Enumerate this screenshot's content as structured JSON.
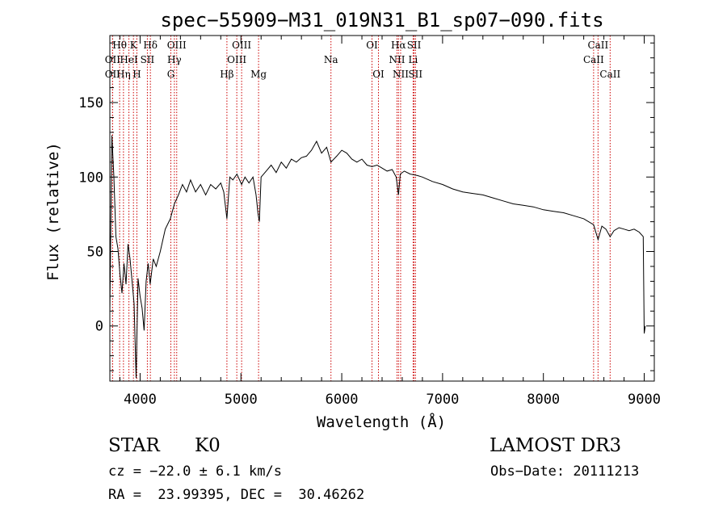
{
  "chart_data": {
    "type": "line",
    "title": "spec−55909−M31_019N31_B1_sp07−090.fits",
    "xlabel": "Wavelength (Å)",
    "ylabel": "Flux (relative)",
    "xlim": [
      3700,
      9100
    ],
    "ylim": [
      -37,
      195
    ],
    "xticks": [
      4000,
      5000,
      6000,
      7000,
      8000,
      9000
    ],
    "yticks": [
      0,
      50,
      100,
      150
    ],
    "line_color": "#000000",
    "marker_color": "#cc0000",
    "series": [
      {
        "name": "flux",
        "x": [
          3700,
          3720,
          3740,
          3760,
          3780,
          3800,
          3820,
          3840,
          3860,
          3880,
          3900,
          3920,
          3940,
          3960,
          3980,
          4000,
          4020,
          4040,
          4060,
          4080,
          4100,
          4130,
          4160,
          4200,
          4250,
          4300,
          4340,
          4380,
          4420,
          4460,
          4500,
          4550,
          4600,
          4650,
          4700,
          4750,
          4800,
          4830,
          4861,
          4890,
          4920,
          4960,
          5007,
          5040,
          5080,
          5120,
          5150,
          5170,
          5183,
          5200,
          5250,
          5300,
          5350,
          5400,
          5450,
          5500,
          5550,
          5600,
          5650,
          5700,
          5750,
          5800,
          5850,
          5893,
          5950,
          6000,
          6050,
          6100,
          6150,
          6200,
          6250,
          6300,
          6350,
          6400,
          6450,
          6500,
          6540,
          6563,
          6580,
          6620,
          6680,
          6750,
          6800,
          6900,
          7000,
          7100,
          7200,
          7300,
          7400,
          7500,
          7600,
          7700,
          7800,
          7900,
          8000,
          8100,
          8200,
          8300,
          8400,
          8498,
          8520,
          8542,
          8580,
          8620,
          8662,
          8700,
          8750,
          8800,
          8850,
          8900,
          8950,
          8990,
          9000,
          9010
        ],
        "y": [
          10,
          128,
          100,
          60,
          52,
          35,
          22,
          42,
          28,
          55,
          45,
          30,
          15,
          -35,
          32,
          20,
          12,
          -3,
          30,
          42,
          28,
          45,
          40,
          50,
          65,
          72,
          82,
          88,
          95,
          90,
          98,
          90,
          95,
          88,
          95,
          92,
          96,
          90,
          72,
          100,
          98,
          102,
          95,
          100,
          96,
          100,
          88,
          75,
          70,
          100,
          104,
          108,
          103,
          110,
          106,
          112,
          110,
          113,
          114,
          118,
          124,
          116,
          120,
          110,
          114,
          118,
          116,
          112,
          110,
          112,
          108,
          107,
          108,
          106,
          104,
          105,
          100,
          88,
          102,
          104,
          102,
          101,
          100,
          97,
          95,
          92,
          90,
          89,
          88,
          86,
          84,
          82,
          81,
          80,
          78,
          77,
          76,
          74,
          72,
          68,
          63,
          58,
          67,
          65,
          60,
          64,
          66,
          65,
          64,
          65,
          63,
          60,
          -5,
          0
        ]
      }
    ],
    "spectral_lines": [
      {
        "label": "Hθ",
        "x": 3797,
        "row": 0
      },
      {
        "label": "OII",
        "x": 3727,
        "row": 1
      },
      {
        "label": "OII",
        "x": 3727,
        "row": 2
      },
      {
        "label": "K",
        "x": 3934,
        "row": 0
      },
      {
        "label": "HeI",
        "x": 3889,
        "row": 1
      },
      {
        "label": "Hη",
        "x": 3835,
        "row": 2
      },
      {
        "label": "Hδ",
        "x": 4102,
        "row": 0
      },
      {
        "label": "SII",
        "x": 4072,
        "row": 1
      },
      {
        "label": "H",
        "x": 3968,
        "row": 2
      },
      {
        "label": "OIII",
        "x": 4363,
        "row": 0
      },
      {
        "label": "Hγ",
        "x": 4340,
        "row": 1
      },
      {
        "label": "G",
        "x": 4305,
        "row": 2
      },
      {
        "label": "OIII",
        "x": 5007,
        "row": 0
      },
      {
        "label": "OIII",
        "x": 4959,
        "row": 1
      },
      {
        "label": "Hβ",
        "x": 4861,
        "row": 2
      },
      {
        "label": "Mg",
        "x": 5175,
        "row": 2
      },
      {
        "label": "Na",
        "x": 5893,
        "row": 1
      },
      {
        "label": "OI",
        "x": 6300,
        "row": 0
      },
      {
        "label": "OI",
        "x": 6364,
        "row": 2
      },
      {
        "label": "Hα",
        "x": 6563,
        "row": 0
      },
      {
        "label": "NII",
        "x": 6548,
        "row": 1
      },
      {
        "label": "NII",
        "x": 6584,
        "row": 2
      },
      {
        "label": "SII",
        "x": 6717,
        "row": 0
      },
      {
        "label": "Li",
        "x": 6708,
        "row": 1
      },
      {
        "label": "SII",
        "x": 6731,
        "row": 2
      },
      {
        "label": "CaII",
        "x": 8542,
        "row": 0
      },
      {
        "label": "CaII",
        "x": 8498,
        "row": 1
      },
      {
        "label": "CaII",
        "x": 8662,
        "row": 2
      }
    ]
  },
  "info": {
    "object_class": "STAR",
    "subclass": "K0",
    "survey": "LAMOST DR3",
    "redshift": "cz = −22.0 ± 6.1 km/s",
    "obs_date": "Obs−Date: 20111213",
    "coords": "RA =  23.99395, DEC =  30.46262"
  }
}
